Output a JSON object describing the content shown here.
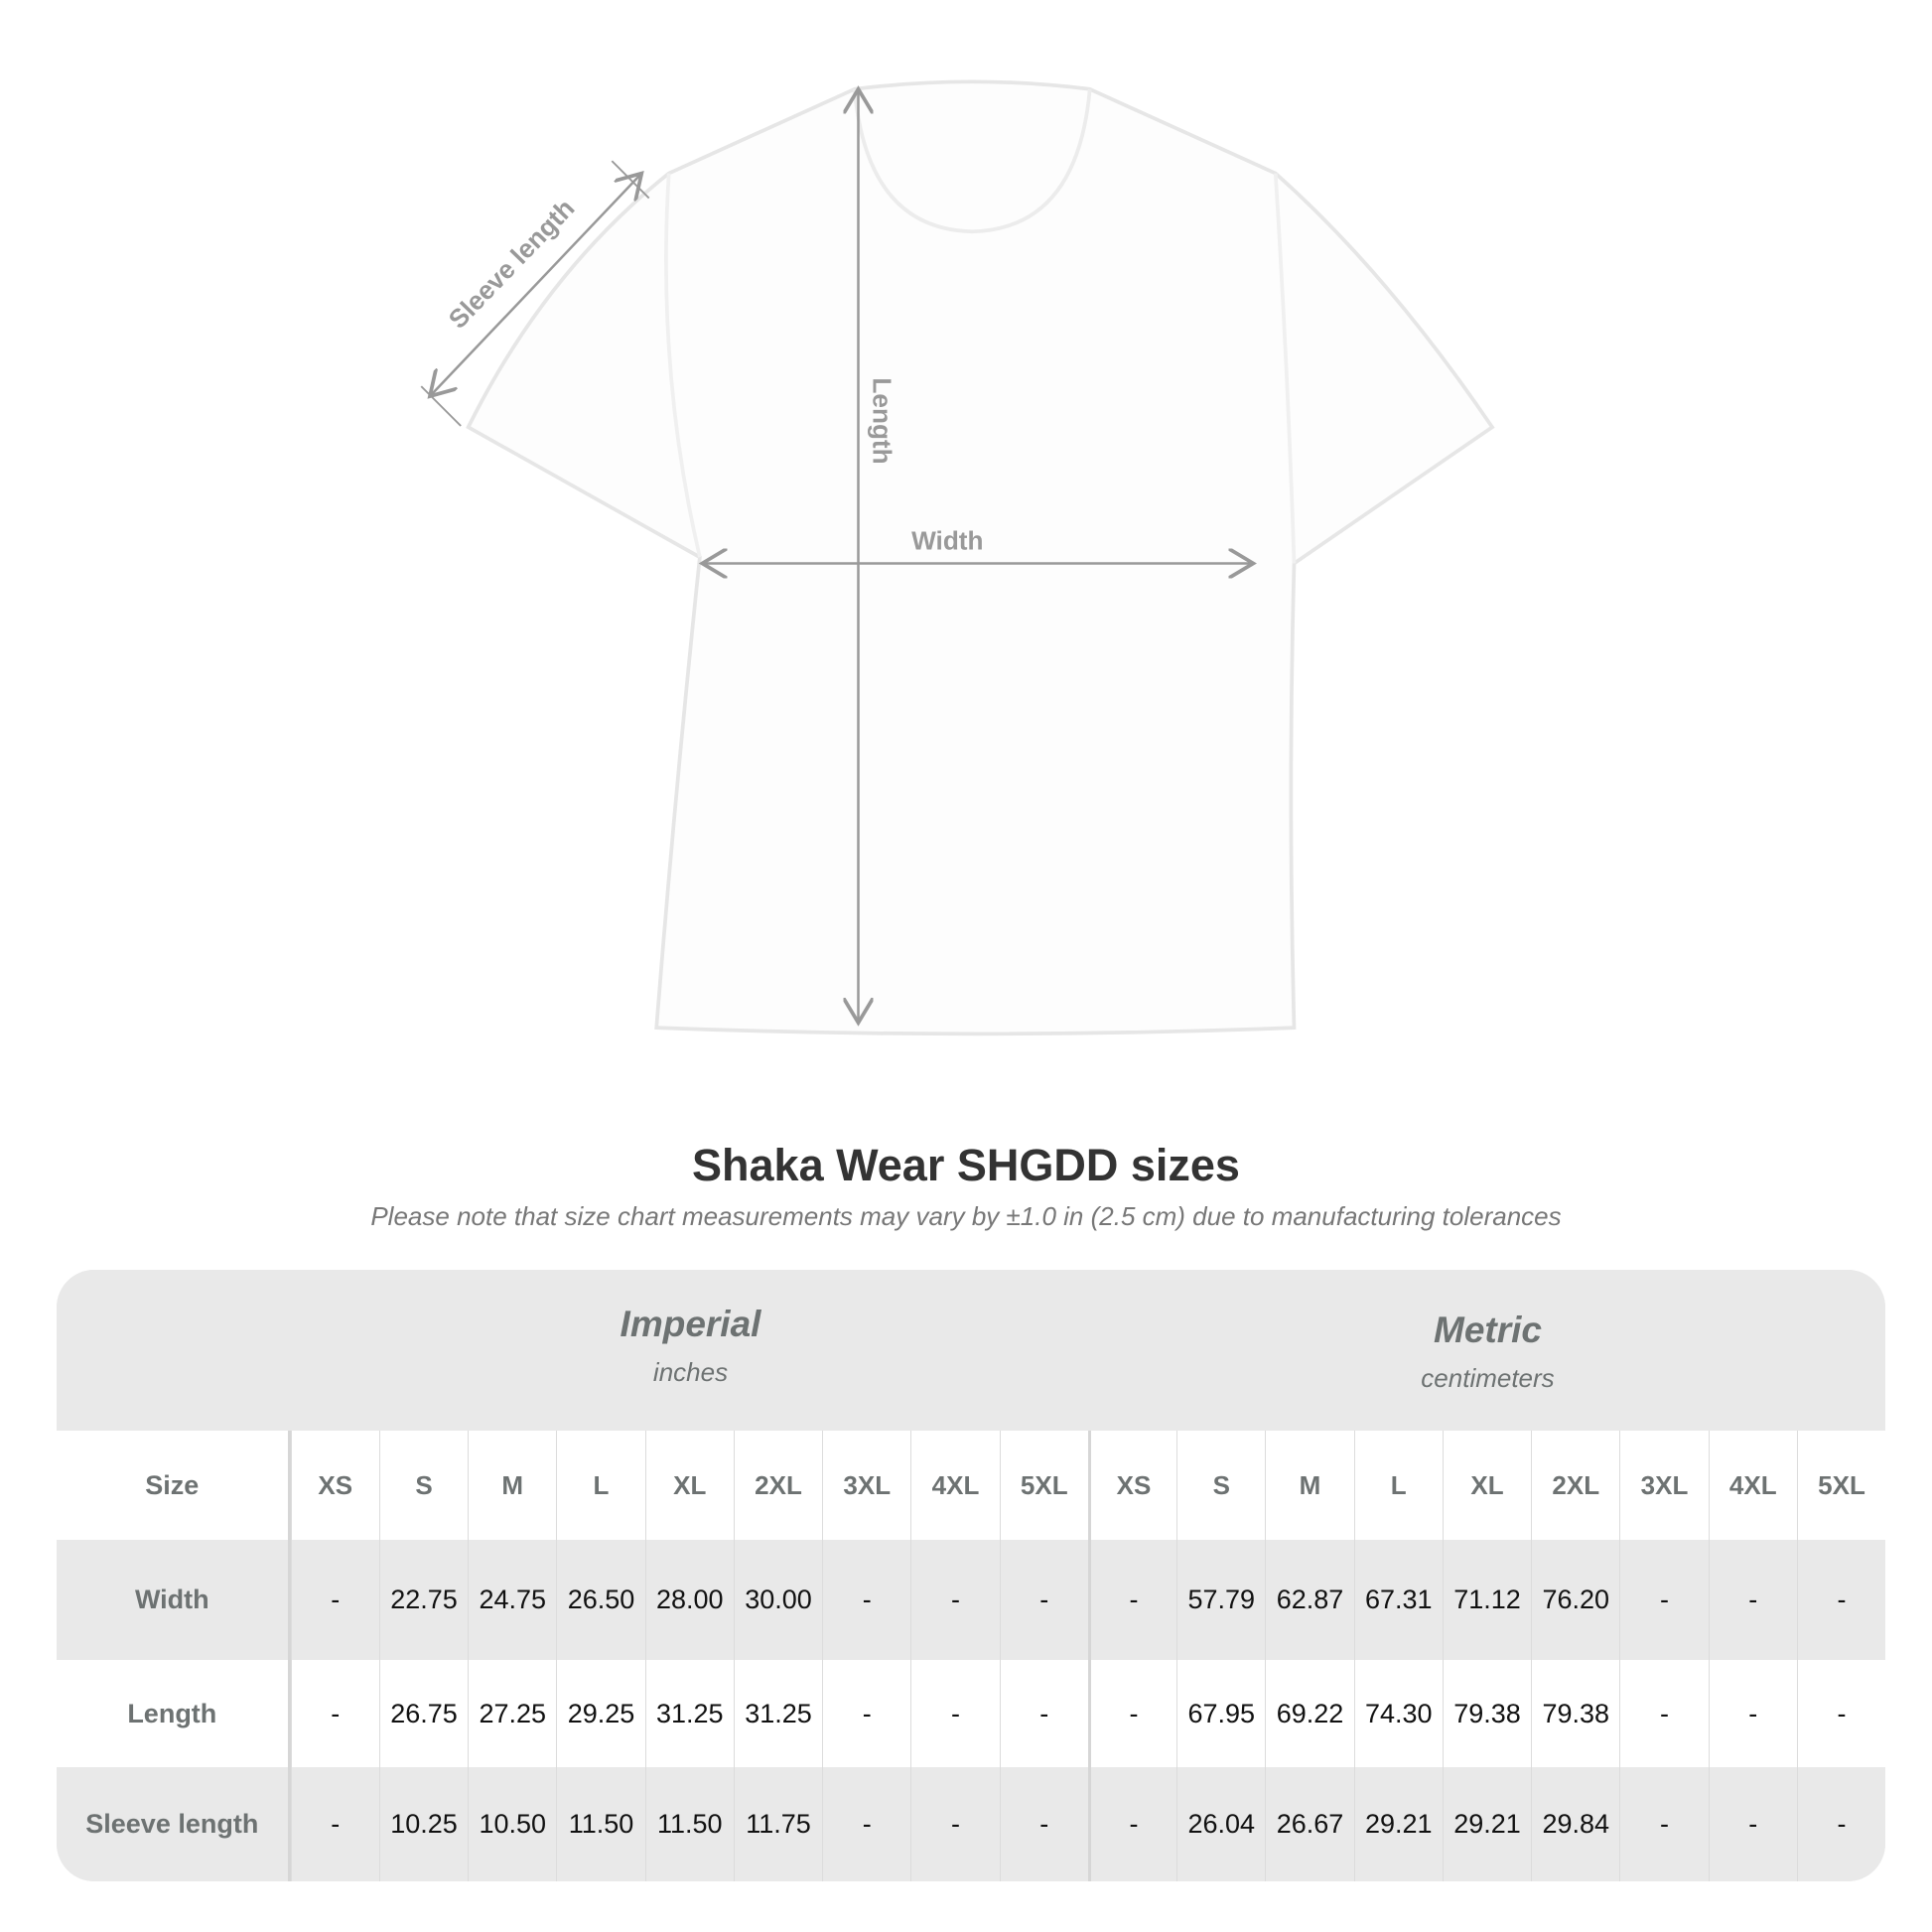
{
  "diagram": {
    "sleeve_label": "Sleeve length",
    "length_label": "Length",
    "width_label": "Width"
  },
  "title": "Shaka Wear SHGDD sizes",
  "subtitle": "Please note that size chart measurements may vary by ±1.0 in (2.5 cm) due to manufacturing tolerances",
  "table": {
    "imperial": {
      "name": "Imperial",
      "unit": "inches"
    },
    "metric": {
      "name": "Metric",
      "unit": "centimeters"
    },
    "size_label": "Size",
    "sizes": [
      "XS",
      "S",
      "M",
      "L",
      "XL",
      "2XL",
      "3XL",
      "4XL",
      "5XL"
    ],
    "rows": [
      {
        "label": "Width",
        "imperial": [
          "-",
          "22.75",
          "24.75",
          "26.50",
          "28.00",
          "30.00",
          "-",
          "-",
          "-"
        ],
        "metric": [
          "-",
          "57.79",
          "62.87",
          "67.31",
          "71.12",
          "76.20",
          "-",
          "-",
          "-"
        ]
      },
      {
        "label": "Length",
        "imperial": [
          "-",
          "26.75",
          "27.25",
          "29.25",
          "31.25",
          "31.25",
          "-",
          "-",
          "-"
        ],
        "metric": [
          "-",
          "67.95",
          "69.22",
          "74.30",
          "79.38",
          "79.38",
          "-",
          "-",
          "-"
        ]
      },
      {
        "label": "Sleeve length",
        "imperial": [
          "-",
          "10.25",
          "10.50",
          "11.50",
          "11.50",
          "11.75",
          "-",
          "-",
          "-"
        ],
        "metric": [
          "-",
          "26.04",
          "26.67",
          "29.21",
          "29.21",
          "29.84",
          "-",
          "-",
          "-"
        ]
      }
    ]
  }
}
